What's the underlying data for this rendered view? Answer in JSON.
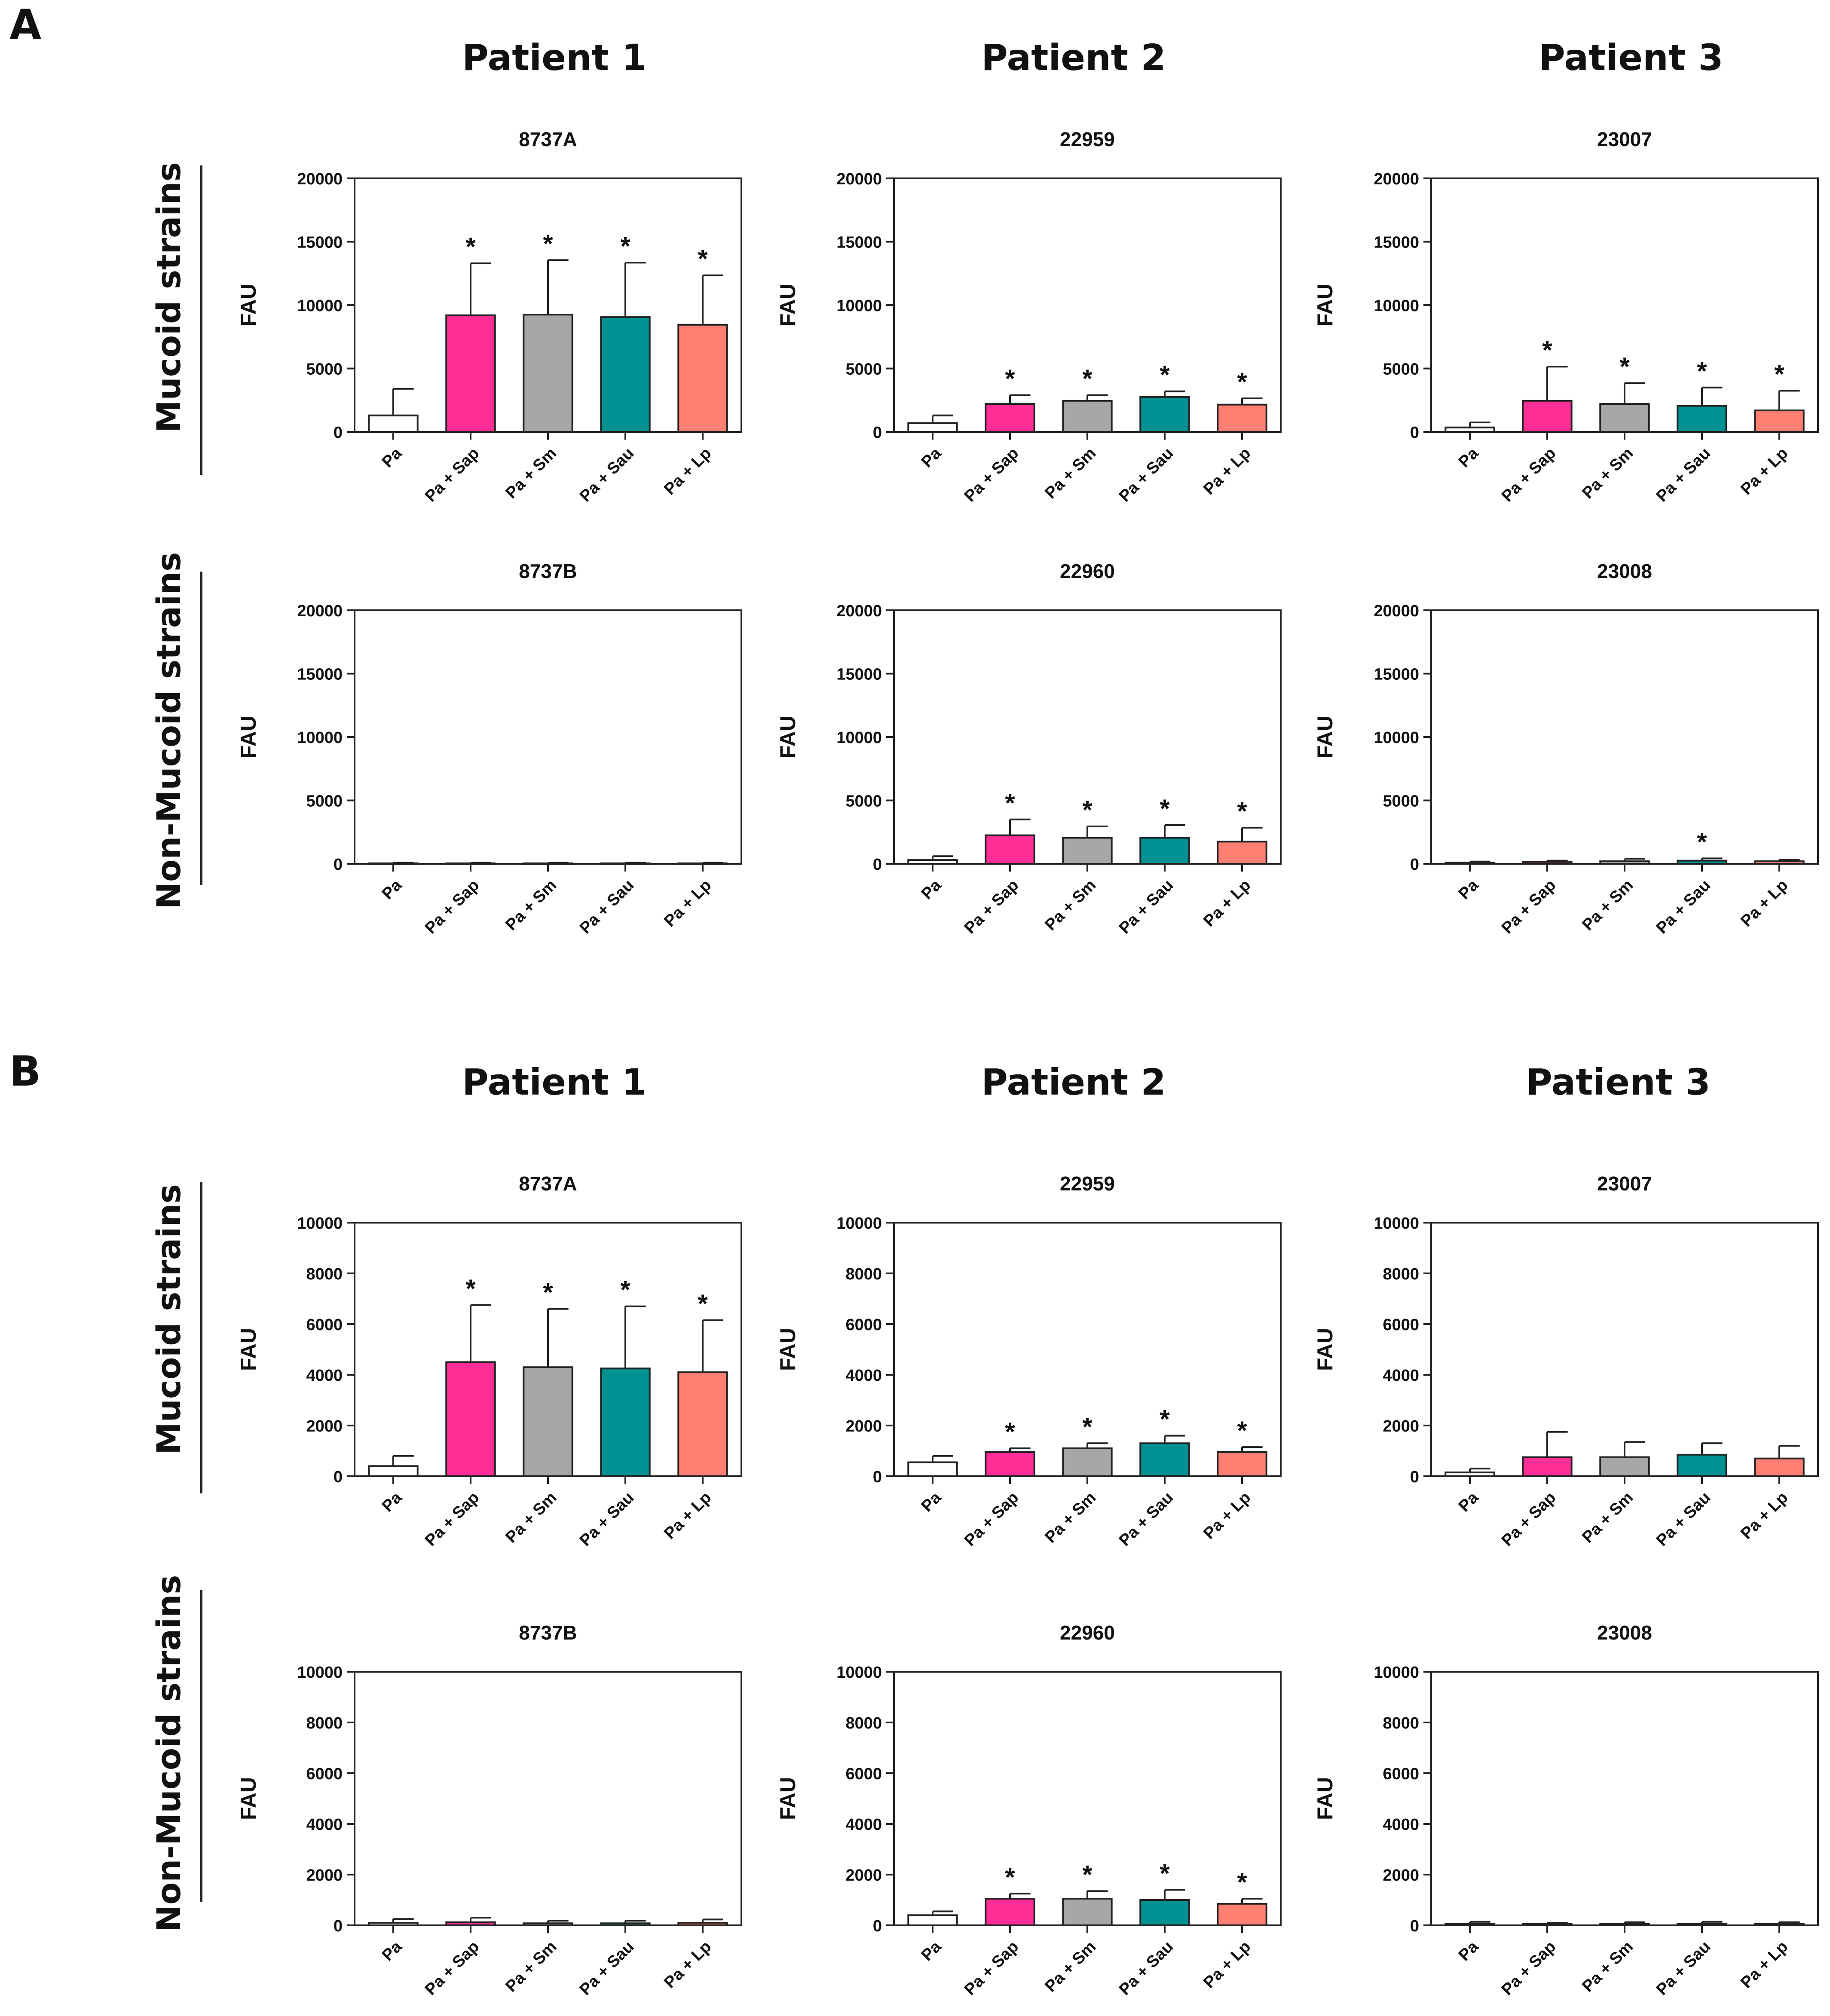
{
  "panels": [
    {
      "letter": "A",
      "patients": [
        "Patient 1",
        "Patient 2",
        "Patient 3"
      ],
      "row_labels": [
        "Mucoid strains",
        "Non-Mucoid strains"
      ]
    },
    {
      "letter": "B",
      "patients": [
        "Patient 1",
        "Patient 2",
        "Patient 3"
      ],
      "row_labels": [
        "Mucoid strains",
        "Non-Mucoid strains"
      ]
    }
  ],
  "colors": {
    "Pa": "#ffffff",
    "Pa + Sap": "#ff2d96",
    "Pa + Sm": "#a7a8a5",
    "Pa + Sau": "#009193",
    "Pa + Lp": "#ff7f72"
  },
  "chart_data": [
    {
      "type": "bar",
      "panel": "A",
      "title": "8737A",
      "ylabel": "FAU",
      "ylim": [
        0,
        20000
      ],
      "yticks": [
        0,
        5000,
        10000,
        15000,
        20000
      ],
      "categories": [
        "Pa",
        "Pa + Sap",
        "Pa + Sm",
        "Pa + Sau",
        "Pa + Lp"
      ],
      "values": [
        1300,
        9200,
        9250,
        9050,
        8450
      ],
      "errors": [
        2100,
        4100,
        4300,
        4300,
        3900
      ],
      "significance": [
        "",
        "*",
        "*",
        "*",
        "*"
      ]
    },
    {
      "type": "bar",
      "panel": "A",
      "title": "22959",
      "ylabel": "FAU",
      "ylim": [
        0,
        20000
      ],
      "yticks": [
        0,
        5000,
        10000,
        15000,
        20000
      ],
      "categories": [
        "Pa",
        "Pa + Sap",
        "Pa + Sm",
        "Pa + Sau",
        "Pa + Lp"
      ],
      "values": [
        700,
        2200,
        2450,
        2750,
        2150
      ],
      "errors": [
        600,
        700,
        450,
        450,
        500
      ],
      "significance": [
        "",
        "*",
        "*",
        "*",
        "*"
      ]
    },
    {
      "type": "bar",
      "panel": "A",
      "title": "23007",
      "ylabel": "FAU",
      "ylim": [
        0,
        20000
      ],
      "yticks": [
        0,
        5000,
        10000,
        15000,
        20000
      ],
      "categories": [
        "Pa",
        "Pa + Sap",
        "Pa + Sm",
        "Pa + Sau",
        "Pa + Lp"
      ],
      "values": [
        350,
        2450,
        2200,
        2050,
        1700
      ],
      "errors": [
        400,
        2700,
        1650,
        1450,
        1550
      ],
      "significance": [
        "",
        "*",
        "*",
        "*",
        "*"
      ]
    },
    {
      "type": "bar",
      "panel": "A",
      "title": "8737B",
      "ylabel": "FAU",
      "ylim": [
        0,
        20000
      ],
      "yticks": [
        0,
        5000,
        10000,
        15000,
        20000
      ],
      "categories": [
        "Pa",
        "Pa + Sap",
        "Pa + Sm",
        "Pa + Sau",
        "Pa + Lp"
      ],
      "values": [
        40,
        40,
        40,
        40,
        40
      ],
      "errors": [
        40,
        40,
        40,
        40,
        40
      ],
      "significance": [
        "",
        "",
        "",
        "",
        ""
      ]
    },
    {
      "type": "bar",
      "panel": "A",
      "title": "22960",
      "ylabel": "FAU",
      "ylim": [
        0,
        20000
      ],
      "yticks": [
        0,
        5000,
        10000,
        15000,
        20000
      ],
      "categories": [
        "Pa",
        "Pa + Sap",
        "Pa + Sm",
        "Pa + Sau",
        "Pa + Lp"
      ],
      "values": [
        300,
        2250,
        2050,
        2050,
        1750
      ],
      "errors": [
        300,
        1250,
        900,
        1000,
        1100
      ],
      "significance": [
        "",
        "*",
        "*",
        "*",
        "*"
      ]
    },
    {
      "type": "bar",
      "panel": "A",
      "title": "23008",
      "ylabel": "FAU",
      "ylim": [
        0,
        20000
      ],
      "yticks": [
        0,
        5000,
        10000,
        15000,
        20000
      ],
      "categories": [
        "Pa",
        "Pa + Sap",
        "Pa + Sm",
        "Pa + Sau",
        "Pa + Lp"
      ],
      "values": [
        100,
        150,
        200,
        250,
        200
      ],
      "errors": [
        80,
        100,
        200,
        180,
        120
      ],
      "significance": [
        "",
        "",
        "",
        "*",
        ""
      ]
    },
    {
      "type": "bar",
      "panel": "B",
      "title": "8737A",
      "ylabel": "FAU",
      "ylim": [
        0,
        10000
      ],
      "yticks": [
        0,
        2000,
        4000,
        6000,
        8000,
        10000
      ],
      "categories": [
        "Pa",
        "Pa + Sap",
        "Pa + Sm",
        "Pa + Sau",
        "Pa + Lp"
      ],
      "values": [
        400,
        4500,
        4300,
        4250,
        4100
      ],
      "errors": [
        400,
        2250,
        2300,
        2450,
        2050
      ],
      "significance": [
        "",
        "*",
        "*",
        "*",
        "*"
      ]
    },
    {
      "type": "bar",
      "panel": "B",
      "title": "22959",
      "ylabel": "FAU",
      "ylim": [
        0,
        10000
      ],
      "yticks": [
        0,
        2000,
        4000,
        6000,
        8000,
        10000
      ],
      "categories": [
        "Pa",
        "Pa + Sap",
        "Pa + Sm",
        "Pa + Sau",
        "Pa + Lp"
      ],
      "values": [
        550,
        950,
        1100,
        1300,
        950
      ],
      "errors": [
        250,
        150,
        200,
        300,
        200
      ],
      "significance": [
        "",
        "*",
        "*",
        "*",
        "*"
      ]
    },
    {
      "type": "bar",
      "panel": "B",
      "title": "23007",
      "ylabel": "FAU",
      "ylim": [
        0,
        10000
      ],
      "yticks": [
        0,
        2000,
        4000,
        6000,
        8000,
        10000
      ],
      "categories": [
        "Pa",
        "Pa + Sap",
        "Pa + Sm",
        "Pa + Sau",
        "Pa + Lp"
      ],
      "values": [
        150,
        750,
        750,
        850,
        700
      ],
      "errors": [
        150,
        1000,
        600,
        450,
        500
      ],
      "significance": [
        "",
        "",
        "",
        "",
        ""
      ]
    },
    {
      "type": "bar",
      "panel": "B",
      "title": "8737B",
      "ylabel": "FAU",
      "ylim": [
        0,
        10000
      ],
      "yticks": [
        0,
        2000,
        4000,
        6000,
        8000,
        10000
      ],
      "categories": [
        "Pa",
        "Pa + Sap",
        "Pa + Sm",
        "Pa + Sau",
        "Pa + Lp"
      ],
      "values": [
        100,
        120,
        80,
        80,
        100
      ],
      "errors": [
        150,
        180,
        100,
        100,
        130
      ],
      "significance": [
        "",
        "",
        "",
        "",
        ""
      ]
    },
    {
      "type": "bar",
      "panel": "B",
      "title": "22960",
      "ylabel": "FAU",
      "ylim": [
        0,
        10000
      ],
      "yticks": [
        0,
        2000,
        4000,
        6000,
        8000,
        10000
      ],
      "categories": [
        "Pa",
        "Pa + Sap",
        "Pa + Sm",
        "Pa + Sau",
        "Pa + Lp"
      ],
      "values": [
        400,
        1050,
        1050,
        1000,
        850
      ],
      "errors": [
        150,
        200,
        300,
        400,
        200
      ],
      "significance": [
        "",
        "*",
        "*",
        "*",
        "*"
      ]
    },
    {
      "type": "bar",
      "panel": "B",
      "title": "23008",
      "ylabel": "FAU",
      "ylim": [
        0,
        10000
      ],
      "yticks": [
        0,
        2000,
        4000,
        6000,
        8000,
        10000
      ],
      "categories": [
        "Pa",
        "Pa + Sap",
        "Pa + Sm",
        "Pa + Sau",
        "Pa + Lp"
      ],
      "values": [
        60,
        60,
        60,
        60,
        60
      ],
      "errors": [
        80,
        40,
        60,
        80,
        60
      ],
      "significance": [
        "",
        "",
        "",
        "",
        ""
      ]
    }
  ]
}
